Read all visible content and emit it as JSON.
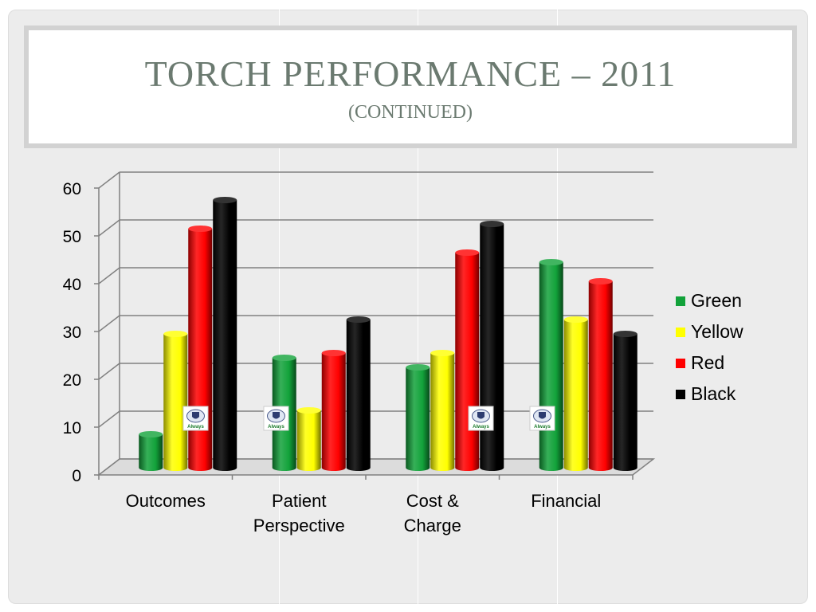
{
  "title": "TORCH PERFORMANCE – 2011",
  "subtitle": "(CONTINUED)",
  "chart_data": {
    "type": "bar",
    "categories": [
      "Outcomes",
      "Patient Perspective",
      "Cost & Charge",
      "Financial"
    ],
    "category_lines": [
      [
        "Outcomes"
      ],
      [
        "Patient",
        "Perspective"
      ],
      [
        "Cost &",
        "Charge"
      ],
      [
        "Financial"
      ]
    ],
    "series": [
      {
        "name": "Green",
        "color": "#12a23a",
        "values": [
          7,
          23,
          21,
          43
        ]
      },
      {
        "name": "Yellow",
        "color": "#ffff00",
        "values": [
          28,
          12,
          24,
          31
        ]
      },
      {
        "name": "Red",
        "color": "#ff0000",
        "values": [
          50,
          24,
          45,
          39
        ]
      },
      {
        "name": "Black",
        "color": "#000000",
        "values": [
          56,
          31,
          51,
          28
        ]
      }
    ],
    "ylim": [
      0,
      60
    ],
    "yticks": [
      "0",
      "10",
      "20",
      "30",
      "40",
      "50",
      "60"
    ],
    "grid": true,
    "legend_position": "right",
    "style": "3d-cylinder"
  },
  "legend": {
    "items": [
      {
        "label": "Green",
        "color": "#12a23a"
      },
      {
        "label": "Yellow",
        "color": "#ffff00"
      },
      {
        "label": "Red",
        "color": "#ff0000"
      },
      {
        "label": "Black",
        "color": "#000000"
      }
    ]
  },
  "badges": {
    "icon": "always-shield-badge-icon",
    "text": "Always"
  }
}
